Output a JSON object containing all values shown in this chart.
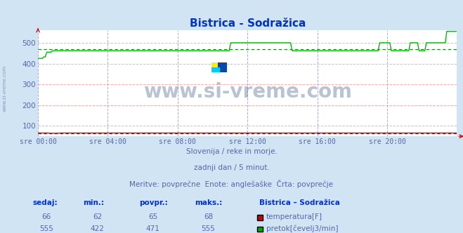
{
  "title": "Bistrica - Sodražica",
  "title_color": "#0033cc",
  "bg_color": "#d0e4f4",
  "plot_bg_color": "#ffffff",
  "grid_color_h": "#ffaaaa",
  "grid_color_v": "#aaaadd",
  "tick_color": "#5566aa",
  "text_color": "#5566aa",
  "ylabel_ticks": [
    100,
    200,
    300,
    400,
    500
  ],
  "ylim": [
    50,
    560
  ],
  "xtick_labels": [
    "sre 00:00",
    "sre 04:00",
    "sre 08:00",
    "sre 12:00",
    "sre 16:00",
    "sre 20:00"
  ],
  "xtick_positions": [
    0,
    4,
    8,
    12,
    16,
    20
  ],
  "subtitle1": "Slovenija / reke in morje.",
  "subtitle2": "zadnji dan / 5 minut.",
  "subtitle3": "Meritve: povprečne  Enote: anglešaške  Črta: povprečje",
  "legend_title": "Bistrica – Sodražica",
  "legend_items": [
    {
      "label": "temperatura[F]",
      "color": "#cc0000"
    },
    {
      "label": "pretok[čevelj3/min]",
      "color": "#00aa00"
    }
  ],
  "stats_headers": [
    "sedaj:",
    "min.:",
    "povpr.:",
    "maks.:"
  ],
  "stats": [
    {
      "sedaj": 66,
      "min": 62,
      "povpr": 65,
      "maks": 68
    },
    {
      "sedaj": 555,
      "min": 422,
      "povpr": 471,
      "maks": 555
    }
  ],
  "temp_color": "#cc0000",
  "flow_color": "#00bb00",
  "avg_flow_color": "#009900",
  "avg_temp": 65,
  "avg_flow": 471,
  "n_points": 288,
  "watermark": "www.si-vreme.com",
  "side_label": "www.si-vreme.com"
}
